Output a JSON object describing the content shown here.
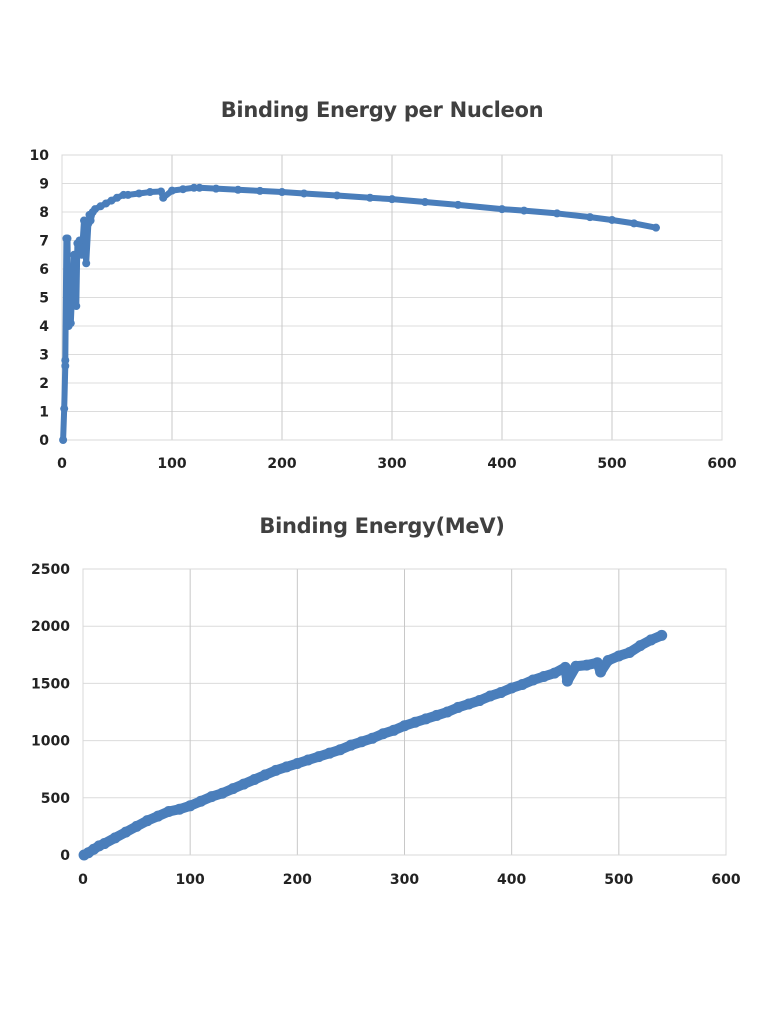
{
  "chart_data": [
    {
      "type": "line",
      "title": "Binding Energy per Nucleon",
      "xlabel": "",
      "ylabel": "",
      "xlim": [
        0,
        600
      ],
      "ylim": [
        0,
        10
      ],
      "xticks": [
        "0",
        "100",
        "200",
        "300",
        "400",
        "500",
        "600"
      ],
      "yticks": [
        "0",
        "1",
        "2",
        "3",
        "4",
        "5",
        "6",
        "7",
        "8",
        "9",
        "10"
      ],
      "grid": true,
      "color": "#4a7ebb",
      "x": [
        1,
        2,
        3,
        3,
        4,
        5,
        6,
        7,
        8,
        9,
        10,
        11,
        12,
        13,
        14,
        16,
        18,
        20,
        22,
        24,
        25,
        26,
        28,
        30,
        35,
        40,
        45,
        50,
        56,
        60,
        70,
        80,
        90,
        92,
        100,
        110,
        120,
        125,
        140,
        160,
        180,
        200,
        220,
        250,
        280,
        300,
        330,
        360,
        400,
        420,
        450,
        480,
        500,
        520,
        540
      ],
      "y": [
        0,
        1.1,
        2.6,
        2.8,
        7.07,
        7.07,
        4.0,
        5.6,
        4.1,
        5.0,
        5.3,
        6.5,
        5.8,
        4.7,
        6.9,
        7.0,
        6.5,
        7.7,
        6.2,
        7.6,
        7.9,
        7.7,
        8.0,
        8.1,
        8.2,
        8.3,
        8.4,
        8.5,
        8.6,
        8.6,
        8.65,
        8.7,
        8.72,
        8.5,
        8.75,
        8.8,
        8.85,
        8.85,
        8.82,
        8.78,
        8.74,
        8.7,
        8.65,
        8.58,
        8.5,
        8.45,
        8.35,
        8.25,
        8.1,
        8.05,
        7.95,
        7.82,
        7.72,
        7.6,
        7.45
      ]
    },
    {
      "type": "scatter",
      "title": "Binding Energy(MeV)",
      "xlabel": "",
      "ylabel": "",
      "xlim": [
        0,
        600
      ],
      "ylim": [
        0,
        2500
      ],
      "xticks": [
        "0",
        "100",
        "200",
        "300",
        "400",
        "500",
        "600"
      ],
      "yticks": [
        "0",
        "500",
        "1000",
        "1500",
        "2000",
        "2500"
      ],
      "grid": true,
      "color": "#4a7ebb",
      "x": [
        1,
        5,
        10,
        15,
        20,
        30,
        40,
        50,
        60,
        70,
        80,
        90,
        100,
        110,
        120,
        130,
        140,
        150,
        160,
        170,
        180,
        190,
        200,
        210,
        220,
        230,
        240,
        250,
        260,
        270,
        280,
        290,
        300,
        310,
        320,
        330,
        340,
        350,
        360,
        370,
        380,
        390,
        400,
        410,
        420,
        430,
        440,
        450,
        452,
        460,
        470,
        480,
        483,
        490,
        500,
        510,
        520,
        530,
        540
      ],
      "y": [
        0,
        20,
        50,
        80,
        100,
        150,
        200,
        250,
        300,
        340,
        380,
        400,
        430,
        470,
        510,
        540,
        580,
        620,
        660,
        700,
        740,
        770,
        800,
        830,
        860,
        890,
        920,
        960,
        990,
        1020,
        1060,
        1090,
        1130,
        1160,
        1190,
        1220,
        1250,
        1290,
        1320,
        1350,
        1390,
        1420,
        1460,
        1490,
        1530,
        1560,
        1590,
        1640,
        1520,
        1650,
        1660,
        1680,
        1600,
        1700,
        1740,
        1770,
        1830,
        1880,
        1920
      ]
    }
  ]
}
